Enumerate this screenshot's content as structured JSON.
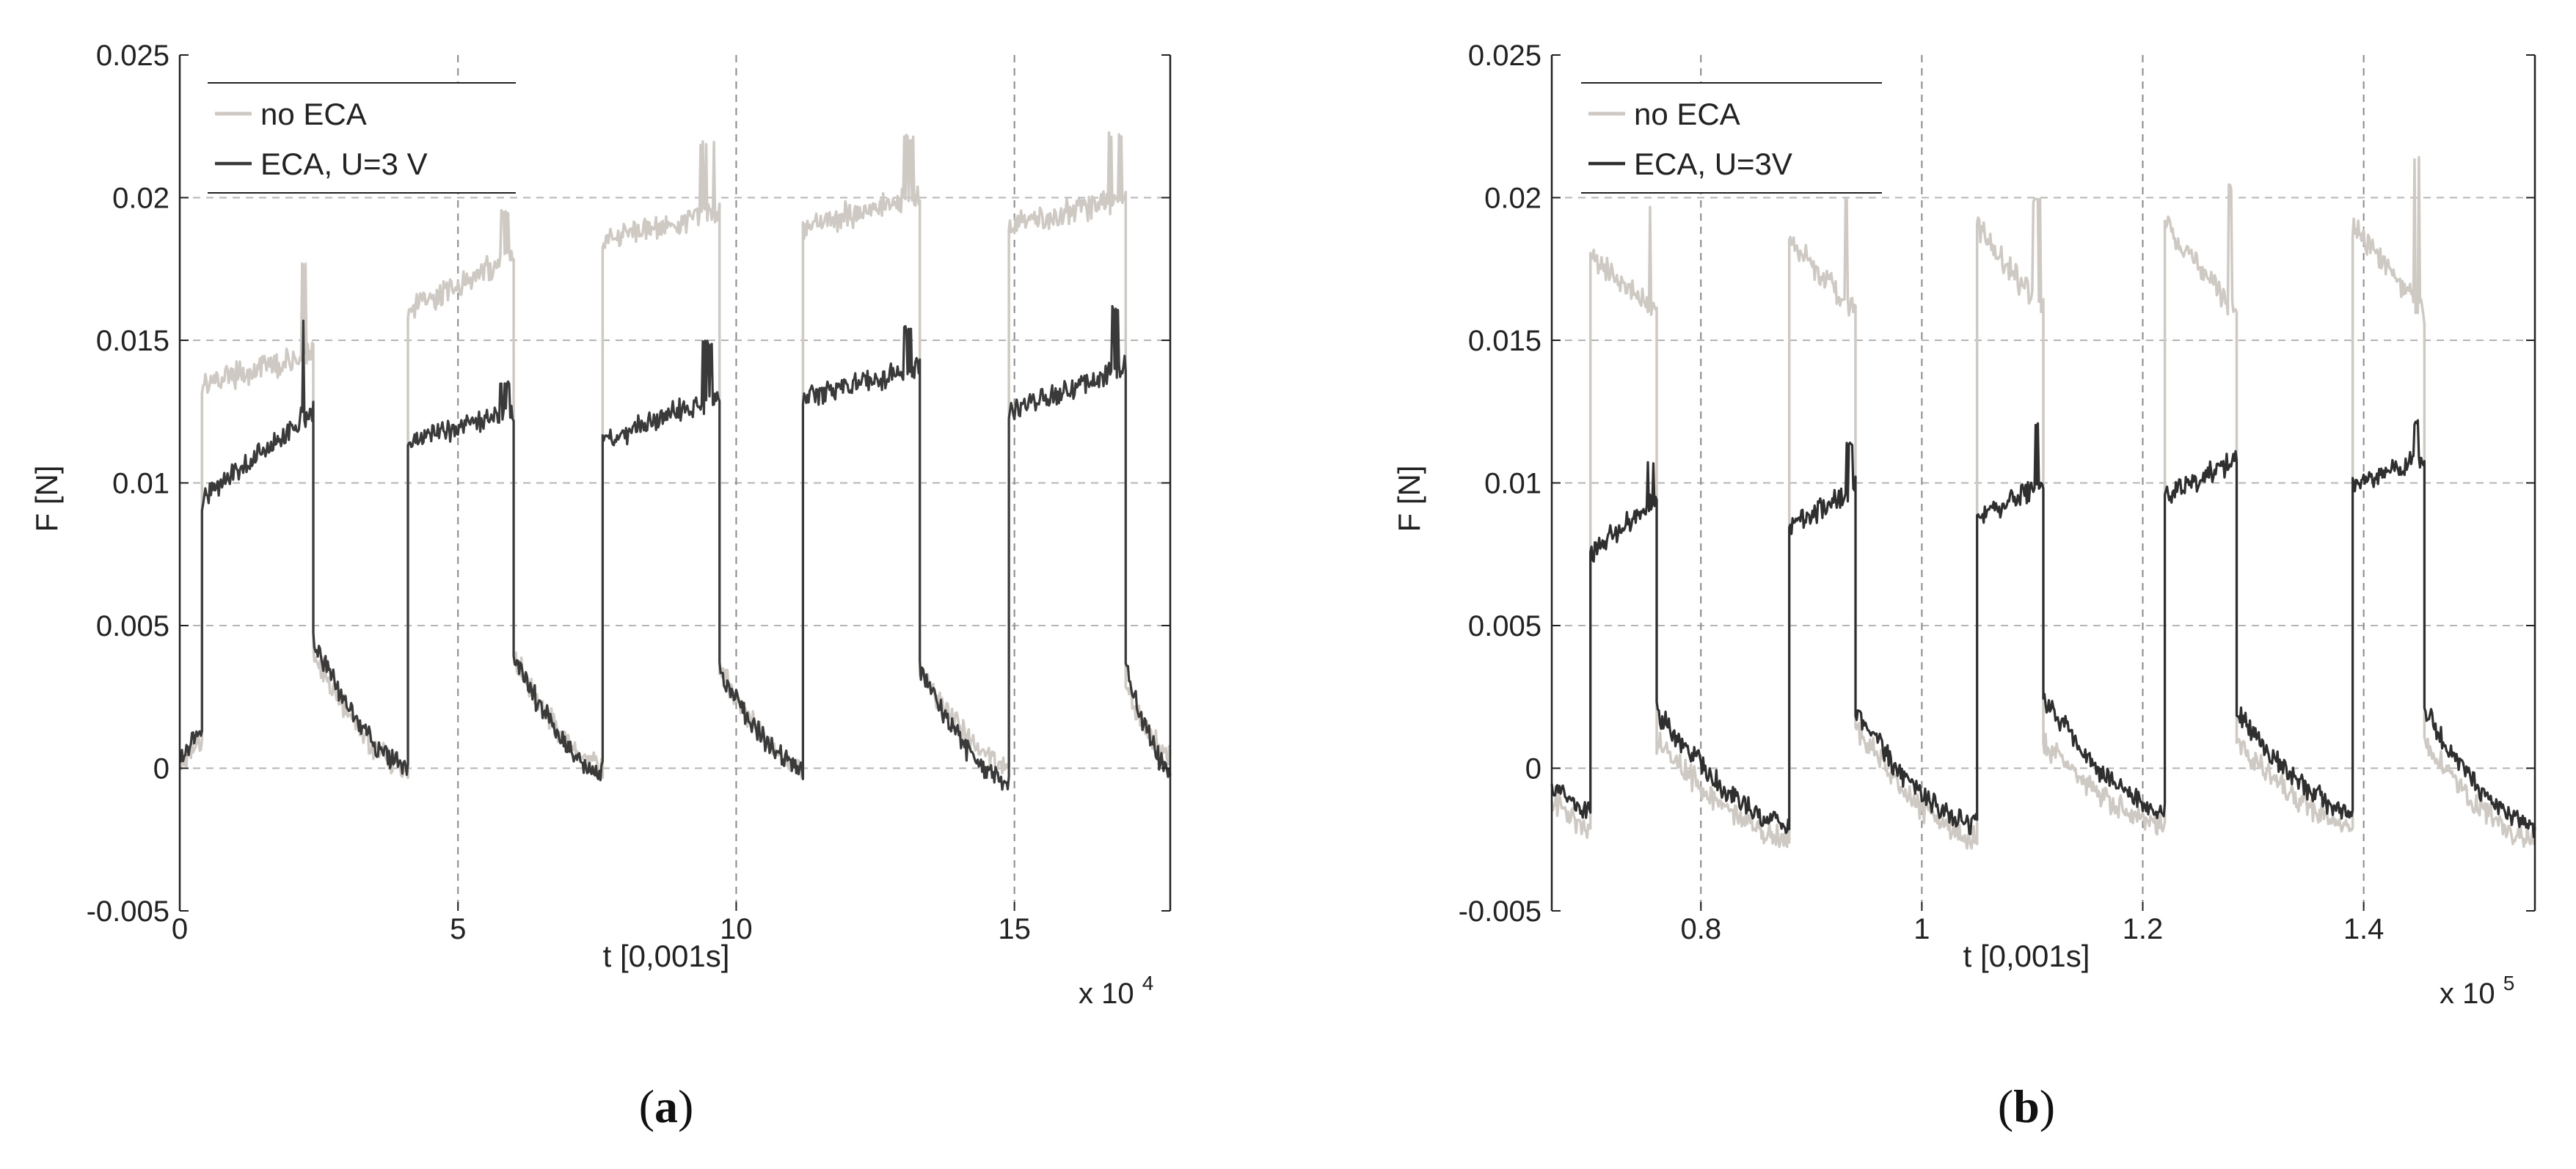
{
  "chart_data": [
    {
      "type": "line",
      "panel_label": "(a)",
      "panel_letter": "a",
      "xlabel": "t [0,001s]",
      "ylabel": "F [N]",
      "x_multiplier": "x 10",
      "x_exponent": "4",
      "xlim": [
        0,
        17.8
      ],
      "ylim": [
        -0.005,
        0.025
      ],
      "xticks": [
        0,
        5,
        10,
        15
      ],
      "xtick_labels": [
        "0",
        "5",
        "10",
        "15"
      ],
      "yticks": [
        -0.005,
        0,
        0.005,
        0.01,
        0.015,
        0.02,
        0.025
      ],
      "ytick_labels": [
        "-0.005",
        "0",
        "0.005",
        "0.01",
        "0.015",
        "0.02",
        "0.025"
      ],
      "grid": true,
      "legend_position": "top-left",
      "series": [
        {
          "name": "no ECA",
          "color": "#cfc9c4",
          "high_pulses": [
            {
              "start": 0.4,
              "end": 2.4,
              "level_start": 0.0135,
              "level_end": 0.0145,
              "peak": 0.0178
            },
            {
              "start": 4.1,
              "end": 6.0,
              "level_start": 0.016,
              "level_end": 0.018,
              "peak": 0.0196
            },
            {
              "start": 7.6,
              "end": 9.7,
              "level_start": 0.0185,
              "level_end": 0.0195,
              "peak": 0.022
            },
            {
              "start": 11.2,
              "end": 13.3,
              "level_start": 0.019,
              "level_end": 0.02,
              "peak": 0.0222
            },
            {
              "start": 14.9,
              "end": 17.0,
              "level_start": 0.019,
              "level_end": 0.02,
              "peak": 0.0223
            }
          ],
          "low_segments": [
            {
              "start": 0.0,
              "end": 0.4,
              "level_start": 0.0,
              "level_end": 0.001
            },
            {
              "start": 2.4,
              "end": 4.1,
              "level_start": 0.004,
              "level_end": 0.0
            },
            {
              "start": 6.0,
              "end": 7.6,
              "level_start": 0.004,
              "level_end": 0.0
            },
            {
              "start": 9.7,
              "end": 11.2,
              "level_start": 0.0035,
              "level_end": 0.0
            },
            {
              "start": 13.3,
              "end": 14.9,
              "level_start": 0.0035,
              "level_end": 0.0
            },
            {
              "start": 17.0,
              "end": 17.8,
              "level_start": 0.003,
              "level_end": 0.0005
            }
          ]
        },
        {
          "name": "ECA, U=3 V",
          "color": "#3a3a3a",
          "high_pulses": [
            {
              "start": 0.4,
              "end": 2.4,
              "level_start": 0.0095,
              "level_end": 0.0125,
              "peak": 0.0157
            },
            {
              "start": 4.1,
              "end": 6.0,
              "level_start": 0.0115,
              "level_end": 0.0125,
              "peak": 0.0136
            },
            {
              "start": 7.6,
              "end": 9.7,
              "level_start": 0.0115,
              "level_end": 0.013,
              "peak": 0.015
            },
            {
              "start": 11.2,
              "end": 13.3,
              "level_start": 0.013,
              "level_end": 0.014,
              "peak": 0.0155
            },
            {
              "start": 14.9,
              "end": 17.0,
              "level_start": 0.0125,
              "level_end": 0.014,
              "peak": 0.0162
            }
          ],
          "low_segments": [
            {
              "start": 0.0,
              "end": 0.4,
              "level_start": 0.0002,
              "level_end": 0.0012
            },
            {
              "start": 2.4,
              "end": 4.1,
              "level_start": 0.0045,
              "level_end": 0.0
            },
            {
              "start": 6.0,
              "end": 7.6,
              "level_start": 0.004,
              "level_end": -0.0002
            },
            {
              "start": 9.7,
              "end": 11.2,
              "level_start": 0.0035,
              "level_end": 0.0
            },
            {
              "start": 13.3,
              "end": 14.9,
              "level_start": 0.0035,
              "level_end": -0.0005
            },
            {
              "start": 17.0,
              "end": 17.8,
              "level_start": 0.0035,
              "level_end": 0.0
            }
          ]
        }
      ]
    },
    {
      "type": "line",
      "panel_label": "(b)",
      "panel_letter": "b",
      "xlabel": "t [0,001s]",
      "ylabel": "F [N]",
      "x_multiplier": "x 10",
      "x_exponent": "5",
      "xlim": [
        0.665,
        1.555
      ],
      "ylim": [
        -0.005,
        0.025
      ],
      "xticks": [
        0.8,
        1.0,
        1.2,
        1.4
      ],
      "xtick_labels": [
        "0.8",
        "1",
        "1.2",
        "1.4"
      ],
      "yticks": [
        -0.005,
        0,
        0.005,
        0.01,
        0.015,
        0.02,
        0.025
      ],
      "ytick_labels": [
        "-0.005",
        "0",
        "0.005",
        "0.01",
        "0.015",
        "0.02",
        "0.025"
      ],
      "grid": true,
      "legend_position": "top-left",
      "series": [
        {
          "name": "no ECA",
          "color": "#cfc9c4",
          "high_pulses": [
            {
              "start": 0.7,
              "end": 0.76,
              "level_start": 0.018,
              "level_end": 0.016,
              "peak": 0.0198
            },
            {
              "start": 0.88,
              "end": 0.94,
              "level_start": 0.0185,
              "level_end": 0.016,
              "peak": 0.02
            },
            {
              "start": 1.05,
              "end": 1.11,
              "level_start": 0.019,
              "level_end": 0.016,
              "peak": 0.02
            },
            {
              "start": 1.22,
              "end": 1.285,
              "level_start": 0.019,
              "level_end": 0.016,
              "peak": 0.0205
            },
            {
              "start": 1.39,
              "end": 1.455,
              "level_start": 0.019,
              "level_end": 0.016,
              "peak": 0.0215
            }
          ],
          "low_segments": [
            {
              "start": 0.665,
              "end": 0.7,
              "level_start": -0.001,
              "level_end": -0.002
            },
            {
              "start": 0.76,
              "end": 0.88,
              "level_start": 0.001,
              "level_end": -0.0025
            },
            {
              "start": 0.94,
              "end": 1.05,
              "level_start": 0.0015,
              "level_end": -0.0025
            },
            {
              "start": 1.11,
              "end": 1.22,
              "level_start": 0.001,
              "level_end": -0.002
            },
            {
              "start": 1.285,
              "end": 1.39,
              "level_start": 0.001,
              "level_end": -0.002
            },
            {
              "start": 1.455,
              "end": 1.555,
              "level_start": 0.001,
              "level_end": -0.0025
            }
          ]
        },
        {
          "name": "ECA, U=3V",
          "color": "#2f2f2f",
          "high_pulses": [
            {
              "start": 0.7,
              "end": 0.76,
              "level_start": 0.0075,
              "level_end": 0.0095,
              "peak": 0.0108
            },
            {
              "start": 0.88,
              "end": 0.94,
              "level_start": 0.0085,
              "level_end": 0.0098,
              "peak": 0.0115
            },
            {
              "start": 1.05,
              "end": 1.11,
              "level_start": 0.0088,
              "level_end": 0.01,
              "peak": 0.0122
            },
            {
              "start": 1.22,
              "end": 1.285,
              "level_start": 0.0095,
              "level_end": 0.0108,
              "peak": 0.0128
            },
            {
              "start": 1.39,
              "end": 1.455,
              "level_start": 0.01,
              "level_end": 0.0108,
              "peak": 0.0122
            }
          ],
          "low_segments": [
            {
              "start": 0.665,
              "end": 0.7,
              "level_start": -0.0005,
              "level_end": -0.0015
            },
            {
              "start": 0.76,
              "end": 0.88,
              "level_start": 0.002,
              "level_end": -0.002
            },
            {
              "start": 0.94,
              "end": 1.05,
              "level_start": 0.002,
              "level_end": -0.002
            },
            {
              "start": 1.11,
              "end": 1.22,
              "level_start": 0.0025,
              "level_end": -0.0015
            },
            {
              "start": 1.285,
              "end": 1.39,
              "level_start": 0.002,
              "level_end": -0.0015
            },
            {
              "start": 1.455,
              "end": 1.555,
              "level_start": 0.002,
              "level_end": -0.002
            }
          ]
        }
      ]
    }
  ]
}
